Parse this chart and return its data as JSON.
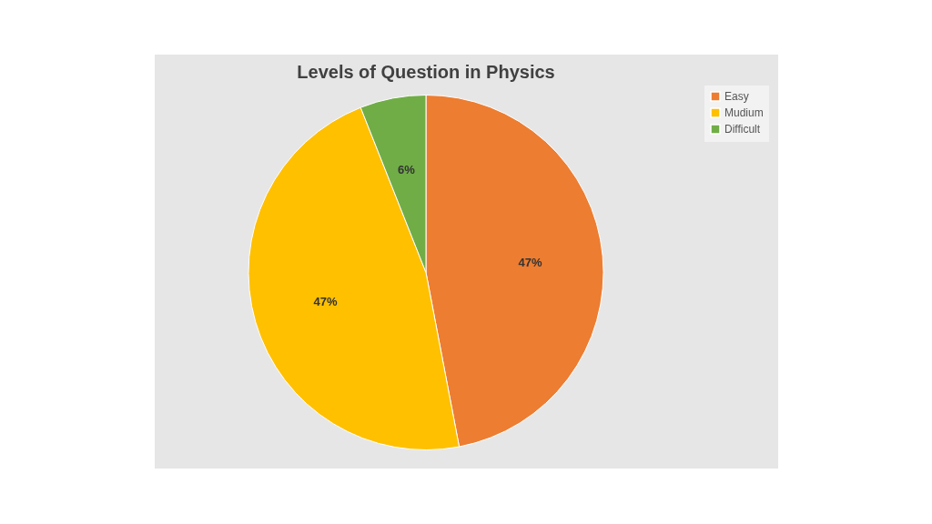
{
  "chart_data": {
    "type": "pie",
    "title": "Levels of Question in Physics",
    "categories": [
      "Easy",
      "Mudium",
      "Difficult"
    ],
    "values": [
      47,
      47,
      6
    ],
    "colors": [
      "#ed7d31",
      "#ffc000",
      "#70ad47"
    ],
    "value_labels": [
      "47%",
      "47%",
      "6%"
    ],
    "legend": "right"
  }
}
